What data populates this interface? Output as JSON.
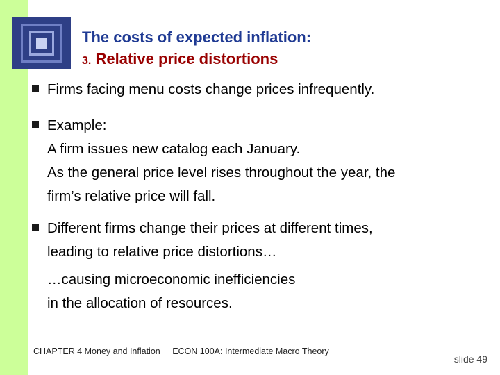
{
  "title": {
    "line1": "The costs of expected inflation:",
    "line2_number": "3.",
    "line2_text": "Relative price distortions"
  },
  "bullets": [
    {
      "text": "Firms facing menu costs change prices infrequently."
    },
    {
      "text": "Example:\nA firm issues new catalog each January.\nAs the general price level rises throughout the year, the\nfirm’s relative price will fall."
    },
    {
      "text": "Different firms change their prices at different times,\nleading to relative price distortions…"
    }
  ],
  "continuation": "…causing microeconomic inefficiencies\nin the allocation of resources.",
  "footer": {
    "chapter": "CHAPTER 4   Money and Inflation",
    "course": "ECON 100A: Intermediate Macro Theory"
  },
  "slide_number": "slide 49",
  "colors": {
    "left_bar": "#ccff99",
    "title_blue": "#1f3a93",
    "title_red": "#990000"
  }
}
